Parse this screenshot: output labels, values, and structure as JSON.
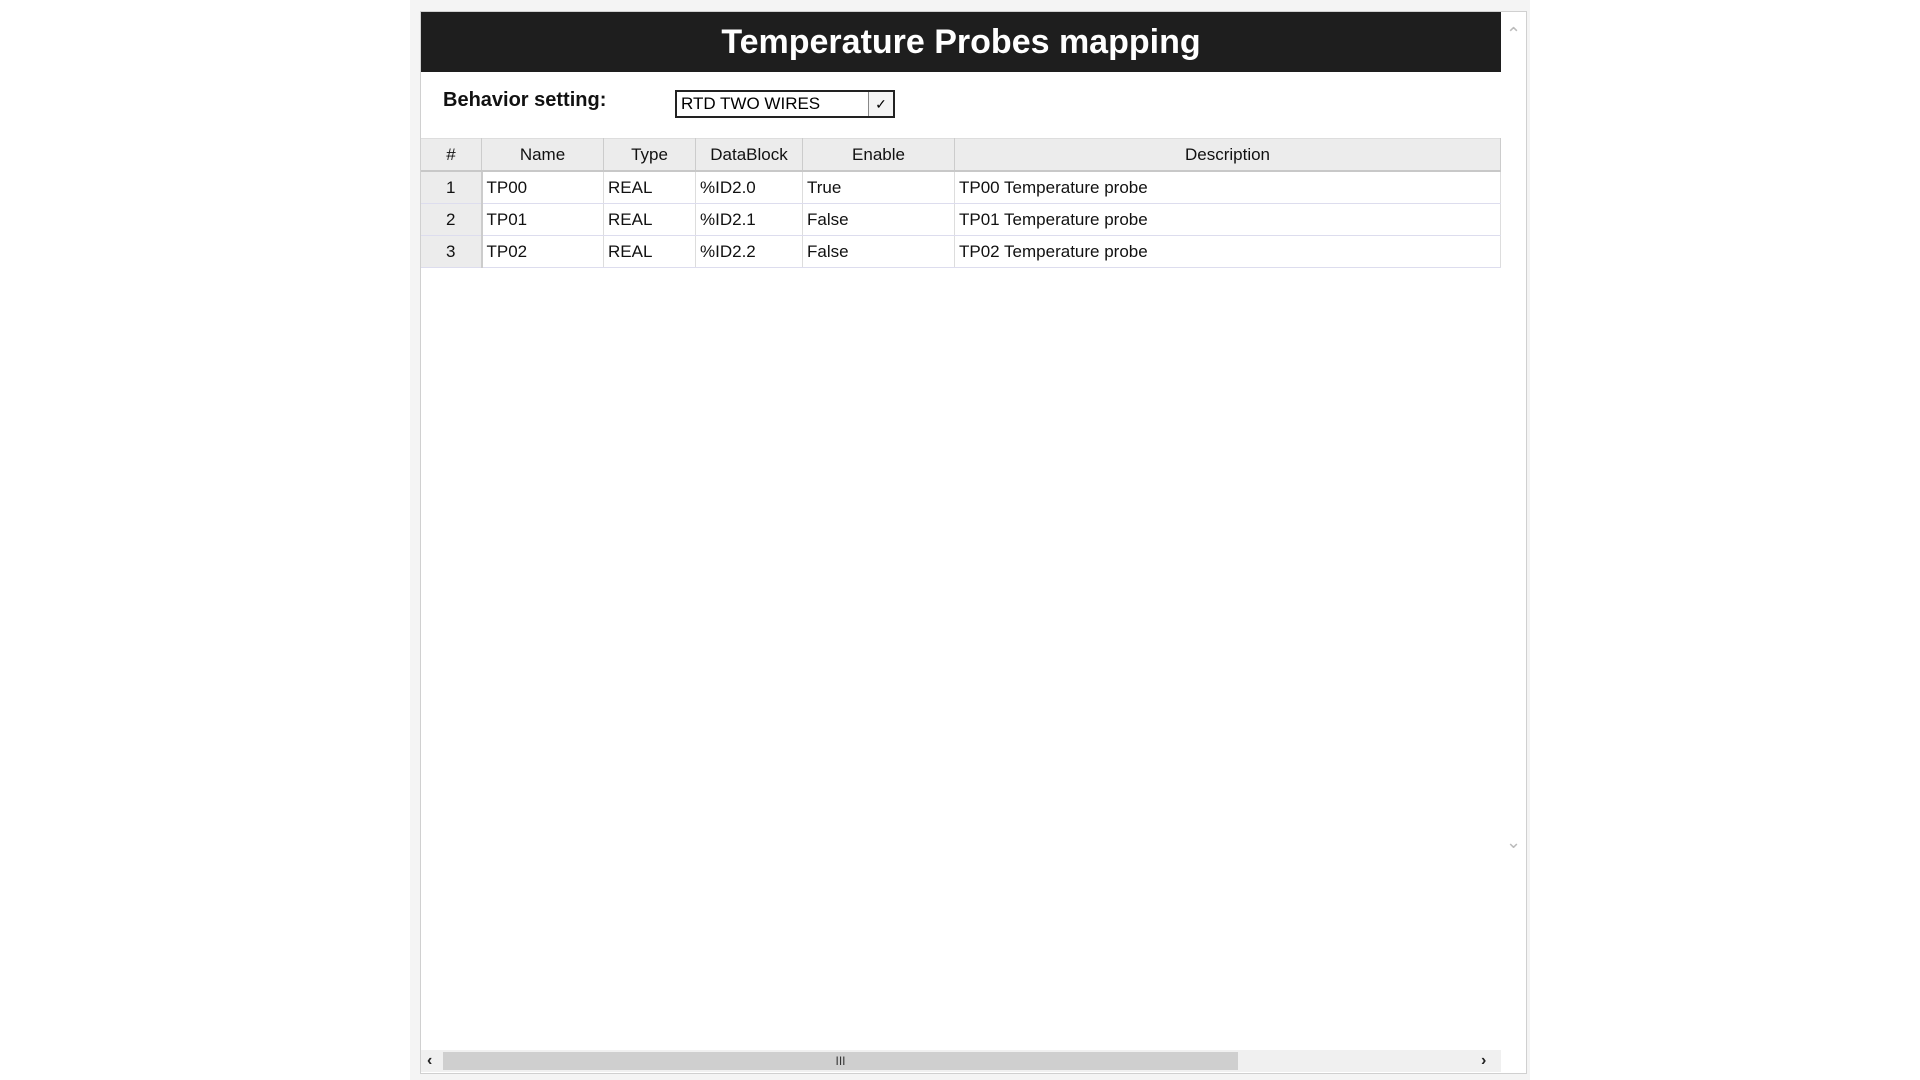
{
  "title": "Temperature Probes mapping",
  "behavior": {
    "label": "Behavior setting:",
    "selected": "RTD TWO WIRES"
  },
  "table": {
    "headers": [
      "#",
      "Name",
      "Type",
      "DataBlock",
      "Enable",
      "Description"
    ],
    "rows": [
      [
        "1",
        "TP00",
        "REAL",
        "%ID2.0",
        "True",
        "TP00 Temperature probe"
      ],
      [
        "2",
        "TP01",
        "REAL",
        "%ID2.1",
        "False",
        "TP01 Temperature probe"
      ],
      [
        "3",
        "TP02",
        "REAL",
        "%ID2.2",
        "False",
        "TP02 Temperature probe"
      ]
    ]
  },
  "scroll": {
    "thumb_grip": "III"
  }
}
